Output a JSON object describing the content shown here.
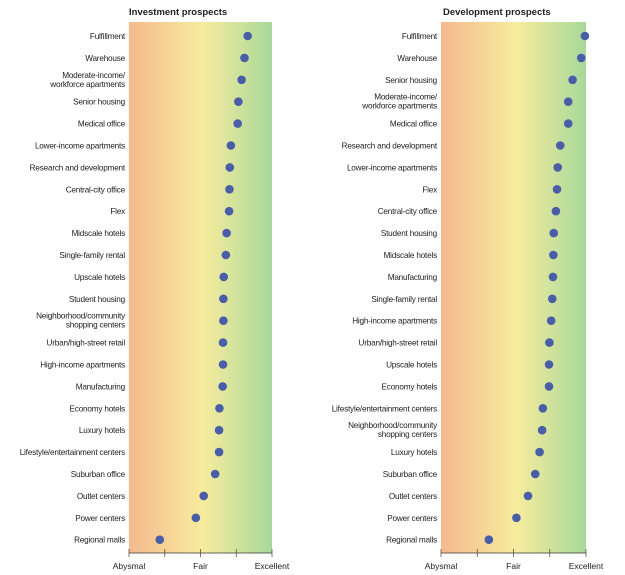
{
  "chart_data": [
    {
      "type": "scatter",
      "title": "Investment prospects",
      "xlabel": "",
      "ylabel": "",
      "x_ticks": [
        "Abysmal",
        "Fair",
        "Excellent"
      ],
      "xlim": [
        1,
        5
      ],
      "categories": [
        "Fulfillment",
        "Warehouse",
        "Moderate-income/\nworkforce apartments",
        "Senior housing",
        "Medical office",
        "Lower-income apartments",
        "Research and development",
        "Central-city office",
        "Flex",
        "Midscale hotels",
        "Single-family rental",
        "Upscale hotels",
        "Student housing",
        "Neighborhood/community\nshopping centers",
        "Urban/high-street retail",
        "High-income apartments",
        "Manufacturing",
        "Economy hotels",
        "Luxury hotels",
        "Lifestyle/entertainment centers",
        "Suburban office",
        "Outlet centers",
        "Power centers",
        "Regional malls"
      ],
      "values": [
        4.32,
        4.23,
        4.15,
        4.06,
        4.04,
        3.85,
        3.82,
        3.81,
        3.8,
        3.73,
        3.71,
        3.65,
        3.64,
        3.64,
        3.63,
        3.63,
        3.62,
        3.53,
        3.52,
        3.52,
        3.41,
        3.09,
        2.87,
        1.86
      ]
    },
    {
      "type": "scatter",
      "title": "Development prospects",
      "xlabel": "",
      "ylabel": "",
      "x_ticks": [
        "Abysmal",
        "Fair",
        "Excellent"
      ],
      "xlim": [
        1,
        5
      ],
      "categories": [
        "Fulfillment",
        "Warehouse",
        "Senior housing",
        "Moderate-income/\nworkforce apartments",
        "Medical office",
        "Research and development",
        "Lower-income apartments",
        "Flex",
        "Central-city office",
        "Student housing",
        "Midscale hotels",
        "Manufacturing",
        "Single-family rental",
        "High-income apartments",
        "Urban/high-street retail",
        "Upscale hotels",
        "Economy hotels",
        "Lifestyle/entertainment centers",
        "Neighborhood/community\nshopping centers",
        "Luxury hotels",
        "Suburban office",
        "Outlet centers",
        "Power centers",
        "Regional malls"
      ],
      "values": [
        4.97,
        4.87,
        4.63,
        4.51,
        4.51,
        4.29,
        4.22,
        4.2,
        4.17,
        4.11,
        4.1,
        4.09,
        4.07,
        4.04,
        3.99,
        3.98,
        3.98,
        3.81,
        3.79,
        3.72,
        3.6,
        3.4,
        3.08,
        2.32
      ]
    }
  ],
  "colors": {
    "dot": "#4a5ea8",
    "grad_left": "#f5b98e",
    "grad_mid": "#f7ec9e",
    "grad_right": "#a8d89a"
  }
}
